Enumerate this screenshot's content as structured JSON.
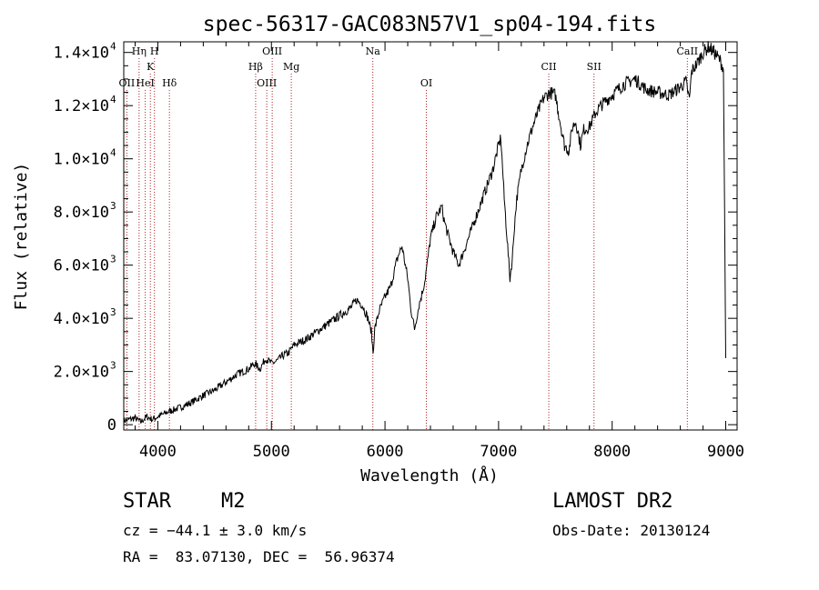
{
  "chart_data": {
    "type": "line",
    "title": "spec-56317-GAC083N57V1_sp04-194.fits",
    "xlabel": "Wavelength (Å)",
    "ylabel": "Flux (relative)",
    "xlim": [
      3700,
      9100
    ],
    "ylim": [
      -200,
      14400
    ],
    "grid": false,
    "x_ticks": [
      {
        "value": 4000,
        "label": "4000"
      },
      {
        "value": 5000,
        "label": "5000"
      },
      {
        "value": 6000,
        "label": "6000"
      },
      {
        "value": 7000,
        "label": "7000"
      },
      {
        "value": 8000,
        "label": "8000"
      },
      {
        "value": 9000,
        "label": "9000"
      }
    ],
    "y_ticks": [
      {
        "value": 0,
        "mant": "0",
        "exp": ""
      },
      {
        "value": 2000,
        "mant": "2.0×10",
        "exp": "3"
      },
      {
        "value": 4000,
        "mant": "4.0×10",
        "exp": "3"
      },
      {
        "value": 6000,
        "mant": "6.0×10",
        "exp": "3"
      },
      {
        "value": 8000,
        "mant": "8.0×10",
        "exp": "3"
      },
      {
        "value": 10000,
        "mant": "1.0×10",
        "exp": "4"
      },
      {
        "value": 12000,
        "mant": "1.2×10",
        "exp": "4"
      },
      {
        "value": 14000,
        "mant": "1.4×10",
        "exp": "4"
      }
    ],
    "lines": [
      {
        "wavelength": 3727,
        "label": "OII",
        "row": 1
      },
      {
        "wavelength": 3835,
        "label": "Hη",
        "row": 0
      },
      {
        "wavelength": 3889,
        "label": "HeI",
        "row": 1
      },
      {
        "wavelength": 3934,
        "label": "K",
        "row": 0.5
      },
      {
        "wavelength": 3970,
        "label": "H",
        "row": 0
      },
      {
        "wavelength": 4102,
        "label": "Hδ",
        "row": 1
      },
      {
        "wavelength": 4861,
        "label": "Hβ",
        "row": 0.5
      },
      {
        "wavelength": 4959,
        "label": "OIII",
        "row": 1
      },
      {
        "wavelength": 5007,
        "label": "OIII",
        "row": 0
      },
      {
        "wavelength": 5175,
        "label": "Mg",
        "row": 0.5
      },
      {
        "wavelength": 5893,
        "label": "Na",
        "row": 0
      },
      {
        "wavelength": 6364,
        "label": "OI",
        "row": 1
      },
      {
        "wavelength": 7442,
        "label": "CII",
        "row": 0.5
      },
      {
        "wavelength": 7840,
        "label": "SII",
        "row": 0.5
      },
      {
        "wavelength": 8662,
        "label": "CaII",
        "row": 0
      }
    ],
    "series": [
      {
        "x": [
          3700,
          3750,
          3800,
          3850,
          3900,
          3950,
          4000,
          4050,
          4100,
          4200,
          4300,
          4400,
          4500,
          4600,
          4700,
          4800,
          4850,
          4900,
          4950,
          5000,
          5050,
          5100,
          5150,
          5200,
          5300,
          5400,
          5500,
          5600,
          5700,
          5750,
          5800,
          5850,
          5880,
          5895,
          5910,
          5950,
          6000,
          6050,
          6100,
          6120,
          6150,
          6200,
          6230,
          6260,
          6300,
          6330,
          6350,
          6370,
          6400,
          6450,
          6500,
          6520,
          6550,
          6600,
          6650,
          6700,
          6750,
          6800,
          6850,
          6900,
          6950,
          7000,
          7020,
          7050,
          7080,
          7100,
          7120,
          7140,
          7160,
          7200,
          7250,
          7300,
          7350,
          7400,
          7450,
          7500,
          7550,
          7580,
          7620,
          7650,
          7680,
          7700,
          7720,
          7750,
          7800,
          7850,
          7900,
          8000,
          8100,
          8200,
          8300,
          8400,
          8500,
          8600,
          8650,
          8680,
          8700,
          8750,
          8800,
          8850,
          8900,
          8950,
          8980,
          9000
        ],
        "y": [
          150,
          200,
          250,
          100,
          300,
          200,
          300,
          400,
          500,
          650,
          850,
          1100,
          1300,
          1600,
          1900,
          2100,
          2300,
          2100,
          2500,
          2300,
          2400,
          2600,
          2700,
          3000,
          3200,
          3500,
          3800,
          4100,
          4400,
          4700,
          4500,
          4000,
          3500,
          2700,
          3600,
          4300,
          4800,
          5200,
          6100,
          6400,
          6700,
          5500,
          4300,
          3600,
          4500,
          5000,
          5400,
          6000,
          7000,
          7800,
          8200,
          7700,
          7200,
          6500,
          6000,
          6600,
          7200,
          7800,
          8400,
          9000,
          9600,
          10500,
          10800,
          8500,
          6700,
          5500,
          6200,
          7500,
          8500,
          9600,
          10500,
          11200,
          11800,
          12300,
          12500,
          12400,
          11200,
          10500,
          10300,
          11200,
          11400,
          11000,
          10500,
          11100,
          11200,
          11700,
          12000,
          12400,
          12800,
          13000,
          12600,
          12500,
          12400,
          12700,
          12900,
          12200,
          13300,
          13600,
          14000,
          14200,
          14000,
          13700,
          13400,
          2500
        ]
      }
    ]
  },
  "info": {
    "obj_class": "STAR",
    "subclass": "M2",
    "survey": "LAMOST DR2",
    "cz_line": "cz = −44.1 ± 3.0 km/s",
    "obs_date": "Obs-Date: 20130124",
    "coords": "RA =  83.07130, DEC =  56.96374"
  }
}
